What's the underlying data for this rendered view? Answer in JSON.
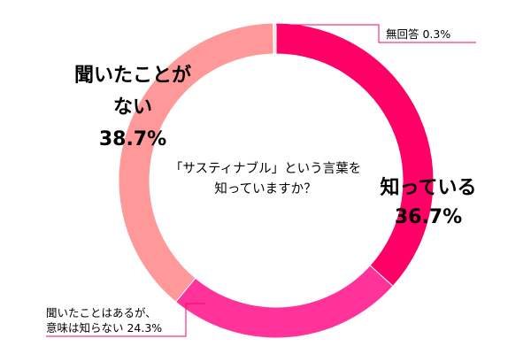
{
  "chart_data": {
    "type": "pie",
    "title": "",
    "center_text": [
      "「サスティナブル」という言葉を",
      "知っていますか？"
    ],
    "slices": [
      {
        "label": "知っている",
        "value": 36.7,
        "value_text": "36.7%",
        "color": "#ff0066"
      },
      {
        "label": "聞いたことはあるが、意味は知らない",
        "value": 24.3,
        "value_text": "24.3%",
        "color": "#ff3399"
      },
      {
        "label": "聞いたことがない",
        "value": 38.7,
        "value_text": "38.7%",
        "color": "#ff9999"
      },
      {
        "label": "無回答",
        "value": 0.3,
        "value_text": "0.3%",
        "color": "#e6e6e6"
      }
    ],
    "labels": {
      "know_line1": "知っている",
      "know_value": "36.7%",
      "never_line1": "聞いたことが",
      "never_line2": "ない",
      "never_value": "38.7%",
      "heard_line1": "聞いたことはあるが、",
      "heard_line2": "意味は知らない 24.3%",
      "noanswer": "無回答 0.3%"
    }
  }
}
